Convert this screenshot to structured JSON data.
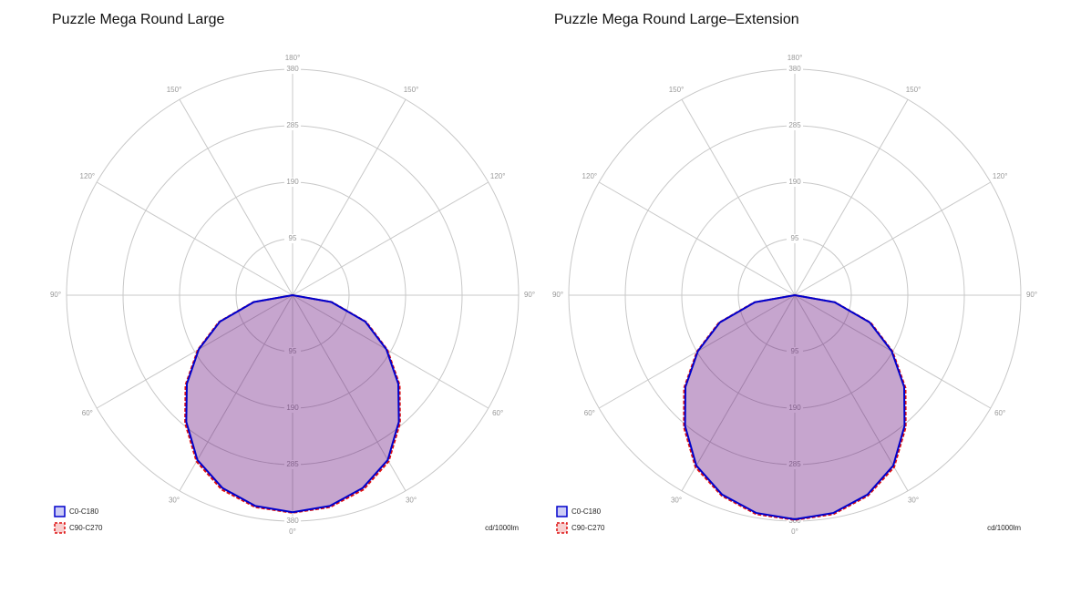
{
  "chart_data": [
    {
      "type": "polar",
      "title": "Puzzle Mega Round Large",
      "unit": "cd/1000lm",
      "angles": [
        -90,
        -80,
        -70,
        -60,
        -50,
        -40,
        -30,
        -20,
        -10,
        0,
        10,
        20,
        30,
        40,
        50,
        60,
        70,
        80,
        90
      ],
      "series": [
        {
          "name": "C0-C180",
          "color": "#0000cc",
          "values": [
            0,
            66,
            130,
            182,
            232,
            278,
            320,
            345,
            360,
            365,
            360,
            345,
            320,
            278,
            232,
            182,
            130,
            66,
            0
          ]
        },
        {
          "name": "C90-C270",
          "color": "#dd1111",
          "values": [
            0,
            67,
            132,
            184,
            235,
            281,
            323,
            348,
            362,
            366,
            362,
            348,
            323,
            281,
            235,
            184,
            132,
            67,
            0
          ]
        }
      ],
      "rlim": [
        0,
        380
      ],
      "rticks": [
        95,
        190,
        285,
        380
      ],
      "angle_ticks": [
        {
          "value": -150,
          "label": "150°"
        },
        {
          "value": -120,
          "label": "120°"
        },
        {
          "value": -90,
          "label": "90°"
        },
        {
          "value": -60,
          "label": "60°"
        },
        {
          "value": -30,
          "label": "30°"
        },
        {
          "value": 0,
          "label": "0°"
        },
        {
          "value": 30,
          "label": "30°"
        },
        {
          "value": 60,
          "label": "60°"
        },
        {
          "value": 90,
          "label": "90°"
        },
        {
          "value": 120,
          "label": "120°"
        },
        {
          "value": 150,
          "label": "150°"
        },
        {
          "value": 180,
          "label": "180°"
        }
      ]
    },
    {
      "type": "polar",
      "title": "Puzzle Mega Round Large–Extension",
      "unit": "cd/1000lm",
      "angles": [
        -90,
        -80,
        -70,
        -60,
        -50,
        -40,
        -30,
        -20,
        -10,
        0,
        10,
        20,
        30,
        40,
        50,
        60,
        70,
        80,
        90
      ],
      "series": [
        {
          "name": "C0-C180",
          "color": "#0000cc",
          "values": [
            0,
            68,
            134,
            188,
            240,
            287,
            331,
            357,
            372,
            377,
            372,
            357,
            331,
            287,
            240,
            188,
            134,
            68,
            0
          ]
        },
        {
          "name": "C90-C270",
          "color": "#dd1111",
          "values": [
            0,
            69,
            136,
            190,
            243,
            290,
            334,
            359,
            374,
            378,
            374,
            359,
            334,
            290,
            243,
            190,
            136,
            69,
            0
          ]
        }
      ],
      "rlim": [
        0,
        380
      ],
      "rticks": [
        95,
        190,
        285,
        380
      ],
      "angle_ticks": [
        {
          "value": -150,
          "label": "150°"
        },
        {
          "value": -120,
          "label": "120°"
        },
        {
          "value": -90,
          "label": "90°"
        },
        {
          "value": -60,
          "label": "60°"
        },
        {
          "value": -30,
          "label": "30°"
        },
        {
          "value": 0,
          "label": "0°"
        },
        {
          "value": 30,
          "label": "30°"
        },
        {
          "value": 60,
          "label": "60°"
        },
        {
          "value": 90,
          "label": "90°"
        },
        {
          "value": 120,
          "label": "120°"
        },
        {
          "value": 150,
          "label": "150°"
        },
        {
          "value": 180,
          "label": "180°"
        }
      ]
    }
  ]
}
